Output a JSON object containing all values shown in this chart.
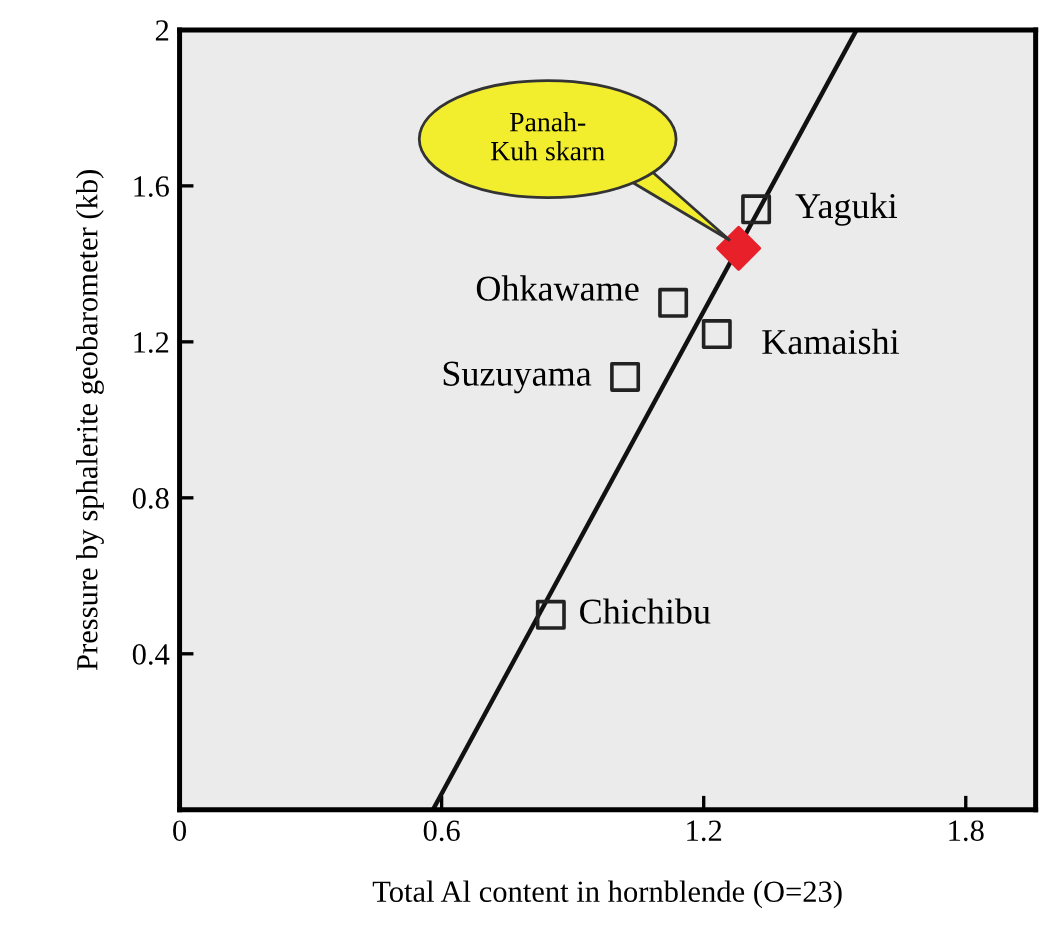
{
  "chart_data": {
    "type": "scatter",
    "xlabel": "Total Al content in hornblende (O=23)",
    "ylabel": "Pressure by sphalerite geobarometer (kb)",
    "xlim": [
      0,
      1.96
    ],
    "ylim": [
      0,
      2
    ],
    "xticks": [
      0,
      0.6,
      1.2,
      1.8
    ],
    "yticks": [
      0.4,
      0.8,
      1.2,
      1.6,
      2
    ],
    "grid": false,
    "series": [
      {
        "type": "line",
        "color": "#111111",
        "x": [
          0.58,
          1.55
        ],
        "values": [
          0,
          2
        ],
        "marker": "none",
        "line_style": "solid"
      },
      {
        "color": "#222222",
        "x": [
          1.32,
          1.13,
          1.23,
          1.02,
          0.85
        ],
        "values": [
          1.54,
          1.3,
          1.22,
          1.11,
          0.5
        ],
        "marker": "square"
      },
      {
        "color": "#e8202a",
        "x": [
          1.28
        ],
        "values": [
          1.44
        ],
        "marker": "diamond"
      }
    ],
    "annotations": [
      {
        "text": "Yaguki",
        "x": 1.32,
        "y": 1.54
      },
      {
        "text": "Ohkawame",
        "x": 1.13,
        "y": 1.3
      },
      {
        "text": "Kamaishi",
        "x": 1.23,
        "y": 1.22
      },
      {
        "text": "Suzuyama",
        "x": 1.02,
        "y": 1.11
      },
      {
        "text": "Chichibu",
        "x": 0.85,
        "y": 0.5
      },
      "Panah-\nKuh skarn"
    ]
  }
}
